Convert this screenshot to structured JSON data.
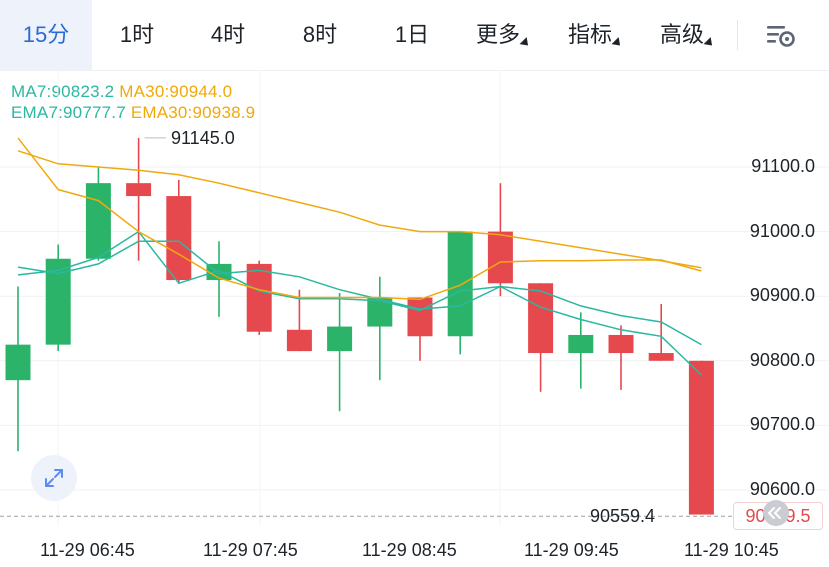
{
  "tabs": [
    {
      "label": "15分",
      "active": true,
      "caret": false
    },
    {
      "label": "1时",
      "active": false,
      "caret": false
    },
    {
      "label": "4时",
      "active": false,
      "caret": false
    },
    {
      "label": "8时",
      "active": false,
      "caret": false
    },
    {
      "label": "1日",
      "active": false,
      "caret": false
    },
    {
      "label": "更多",
      "active": false,
      "caret": true
    },
    {
      "label": "指标",
      "active": false,
      "caret": true
    },
    {
      "label": "高级",
      "active": false,
      "caret": true
    }
  ],
  "legend": {
    "ma7": "MA7:90823.2",
    "ma30": "MA30:90944.0",
    "ema7": "EMA7:90777.7",
    "ema30": "EMA30:90938.9"
  },
  "markers": {
    "max_price": "91145.0",
    "last_price": "90559.4",
    "current_price": "90559.5"
  },
  "colors": {
    "up": "#2bb36a",
    "down": "#e5484d",
    "ma7": "#2bb8a0",
    "ma30": "#f0a90c",
    "accent": "#2a6cd3"
  },
  "icons": {
    "settings": "settings-icon",
    "expand": "expand-icon",
    "collapse": "collapse-icon"
  },
  "chart_data": {
    "type": "candlestick",
    "title": "",
    "y_ticks": [
      "91100.0",
      "91000.0",
      "90900.0",
      "90800.0",
      "90700.0",
      "90600.0"
    ],
    "x_ticks": [
      "11-29 06:45",
      "11-29 07:45",
      "11-29 08:45",
      "11-29 09:45",
      "11-29 10:45"
    ],
    "ylim": [
      90540,
      91190
    ],
    "grid": true,
    "candles": [
      {
        "o": 90770,
        "c": 90825,
        "h": 90915,
        "l": 90660
      },
      {
        "o": 90825,
        "c": 90958,
        "h": 90980,
        "l": 90815
      },
      {
        "o": 90958,
        "c": 91075,
        "h": 91100,
        "l": 90955
      },
      {
        "o": 91075,
        "c": 91055,
        "h": 91145,
        "l": 90955
      },
      {
        "o": 91055,
        "c": 90925,
        "h": 91080,
        "l": 90920
      },
      {
        "o": 90925,
        "c": 90950,
        "h": 90985,
        "l": 90868
      },
      {
        "o": 90950,
        "c": 90845,
        "h": 90955,
        "l": 90840
      },
      {
        "o": 90848,
        "c": 90815,
        "h": 90910,
        "l": 90815
      },
      {
        "o": 90815,
        "c": 90853,
        "h": 90905,
        "l": 90722
      },
      {
        "o": 90853,
        "c": 90898,
        "h": 90930,
        "l": 90770
      },
      {
        "o": 90898,
        "c": 90838,
        "h": 90898,
        "l": 90800
      },
      {
        "o": 90838,
        "c": 91000,
        "h": 91000,
        "l": 90810
      },
      {
        "o": 91000,
        "c": 90920,
        "h": 91075,
        "l": 90900
      },
      {
        "o": 90920,
        "c": 90812,
        "h": 90920,
        "l": 90752
      },
      {
        "o": 90812,
        "c": 90840,
        "h": 90875,
        "l": 90757
      },
      {
        "o": 90840,
        "c": 90812,
        "h": 90855,
        "l": 90755
      },
      {
        "o": 90812,
        "c": 90800,
        "h": 90888,
        "l": 90800
      },
      {
        "o": 90800,
        "c": 90562,
        "h": 90800,
        "l": 90562
      }
    ],
    "series": [
      {
        "name": "MA7",
        "values": [
          90945,
          90935,
          90950,
          90985,
          90985,
          90935,
          90940,
          90930,
          90910,
          90895,
          90880,
          90885,
          90915,
          90908,
          90885,
          90870,
          90860,
          90825
        ]
      },
      {
        "name": "MA30",
        "values": [
          91125,
          91105,
          91100,
          91095,
          91088,
          91075,
          91060,
          91045,
          91030,
          91010,
          91000,
          91000,
          90995,
          90985,
          90975,
          90965,
          90955,
          90944
        ]
      },
      {
        "name": "EMA7",
        "values": [
          90933,
          90940,
          90960,
          91000,
          90920,
          90940,
          90908,
          90896,
          90896,
          90893,
          90878,
          90908,
          90915,
          90883,
          90864,
          90848,
          90838,
          90778
        ]
      },
      {
        "name": "EMA30",
        "values": [
          91145,
          91065,
          91048,
          91000,
          90965,
          90928,
          90910,
          90898,
          90898,
          90898,
          90895,
          90917,
          90953,
          90955,
          90955,
          90956,
          90956,
          90939
        ]
      }
    ]
  }
}
